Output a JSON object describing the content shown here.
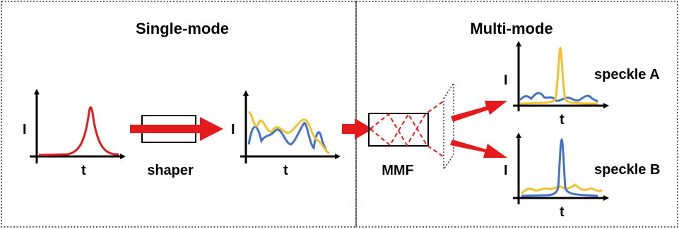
{
  "panels": {
    "left_title": "Single-mode",
    "right_title": "Multi-mode"
  },
  "labels": {
    "intensity": "I",
    "time": "t",
    "shaper": "shaper",
    "mmf": "MMF",
    "speckle_a": "speckle A",
    "speckle_b": "speckle B"
  },
  "colors": {
    "red": "#e41a1c",
    "blue": "#4472c4",
    "yellow": "#f2c12e",
    "border": "#333333"
  }
}
